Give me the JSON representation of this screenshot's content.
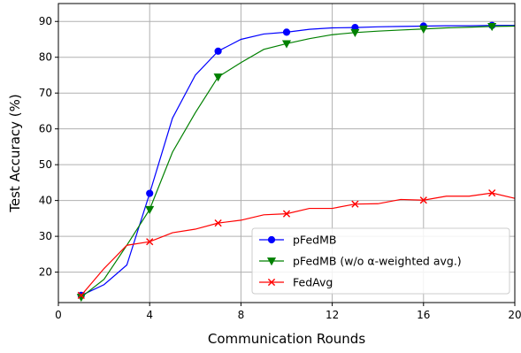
{
  "chart_data": {
    "type": "line",
    "xlabel": "Communication Rounds",
    "ylabel": "Test Accuracy (%)",
    "xlim": [
      0,
      20
    ],
    "ylim": [
      11.5,
      95
    ],
    "xticks": [
      0,
      4,
      8,
      12,
      16,
      20
    ],
    "yticks": [
      20,
      30,
      40,
      50,
      60,
      70,
      80,
      90
    ],
    "grid": true,
    "legend_position": "lower-right",
    "series": [
      {
        "name": "pFedMB",
        "color": "#0000ff",
        "marker": "circle",
        "x": [
          1,
          2,
          3,
          4,
          5,
          6,
          7,
          8,
          9,
          10,
          11,
          12,
          13,
          14,
          15,
          16,
          17,
          18,
          19,
          20
        ],
        "y": [
          13.5,
          16.5,
          22,
          42,
          63,
          75,
          81.7,
          85,
          86.5,
          87,
          87.8,
          88.2,
          88.3,
          88.5,
          88.6,
          88.7,
          88.8,
          88.8,
          88.9,
          88.9
        ],
        "markers_at": [
          1,
          4,
          7,
          10,
          13,
          16,
          19
        ]
      },
      {
        "name": "pFedMB (w/o α-weighted avg.)",
        "color": "#008000",
        "marker": "triangle-down",
        "x": [
          1,
          2,
          3,
          4,
          5,
          6,
          7,
          8,
          9,
          10,
          11,
          12,
          13,
          14,
          15,
          16,
          17,
          18,
          19,
          20
        ],
        "y": [
          13,
          18,
          27.5,
          37.5,
          53.5,
          64.5,
          74.5,
          78.5,
          82.2,
          83.8,
          85.2,
          86.3,
          86.9,
          87.3,
          87.6,
          87.9,
          88.2,
          88.4,
          88.6,
          88.7
        ],
        "markers_at": [
          1,
          4,
          7,
          10,
          13,
          16,
          19
        ]
      },
      {
        "name": "FedAvg",
        "color": "#ff0000",
        "marker": "x",
        "x": [
          1,
          2,
          3,
          4,
          5,
          6,
          7,
          8,
          9,
          10,
          11,
          12,
          13,
          14,
          15,
          16,
          17,
          18,
          19,
          20
        ],
        "y": [
          13.5,
          21,
          27.5,
          28.5,
          31,
          32,
          33.7,
          34.5,
          36,
          36.3,
          37.8,
          37.8,
          39,
          39.1,
          40.3,
          40.1,
          41.2,
          41.2,
          42.1,
          40.6
        ],
        "markers_at": [
          1,
          4,
          7,
          10,
          13,
          16,
          19
        ]
      }
    ]
  }
}
